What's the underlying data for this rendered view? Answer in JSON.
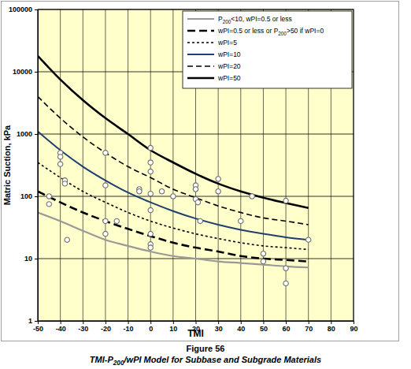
{
  "chart_data": {
    "type": "line",
    "title": "Figure 56",
    "subtitle": "TMI-P200/wPI Model for Subbase and Subgrade Materials",
    "x_label": "TMI",
    "y_label": "Matric Suction, kPa",
    "log": "y",
    "grid": true,
    "legend": "upper right",
    "xlim": [
      -50,
      90
    ],
    "xticks": [
      -50,
      -40,
      -30,
      -20,
      -10,
      0,
      10,
      20,
      30,
      40,
      50,
      60,
      70,
      80,
      90
    ],
    "ylim": [
      1,
      100000
    ],
    "yticks": [
      1,
      10,
      100,
      1000,
      10000,
      100000
    ],
    "x": [
      -50,
      -40,
      -30,
      -20,
      -10,
      0,
      10,
      20,
      30,
      40,
      50,
      60,
      70
    ],
    "series": [
      {
        "name": "P200<10, wPI=0.5 or less",
        "color": "#999999",
        "line_style": "solid",
        "values": [
          55,
          40,
          28,
          20,
          16,
          13,
          11,
          10,
          9,
          8.5,
          8,
          7.5,
          7.2
        ]
      },
      {
        "name": "wPI=0.5 or less or P200>50 if wPI=0",
        "color": "#000000",
        "line_style": "long-dash",
        "values": [
          120,
          80,
          55,
          40,
          30,
          23,
          18,
          15,
          13,
          11,
          10,
          9.5,
          9
        ]
      },
      {
        "name": "wPI=5",
        "color": "#000000",
        "line_style": "dotted",
        "values": [
          350,
          200,
          120,
          80,
          55,
          40,
          31,
          25,
          21,
          18,
          16,
          15,
          14
        ]
      },
      {
        "name": "wPI=10",
        "color": "#1f3f6e",
        "line_style": "solid",
        "values": [
          1100,
          550,
          300,
          180,
          115,
          80,
          58,
          44,
          35,
          29,
          25,
          22,
          20
        ]
      },
      {
        "name": "wPI=20",
        "color": "#000000",
        "line_style": "dash",
        "values": [
          4000,
          1800,
          900,
          500,
          300,
          200,
          130,
          95,
          70,
          55,
          45,
          40,
          35
        ]
      },
      {
        "name": "wPI=50",
        "color": "#000000",
        "line_style": "solid",
        "values": [
          18000,
          7500,
          3500,
          1800,
          1000,
          550,
          350,
          230,
          160,
          120,
          95,
          78,
          65
        ]
      },
      {
        "type": "scatter",
        "marker": "circle",
        "color": "#707070",
        "x": [
          -45,
          -45,
          -40,
          -40,
          -40,
          -38,
          -38,
          -37,
          -20,
          -20,
          -20,
          -20,
          -15,
          -5,
          -5,
          0,
          0,
          0,
          0,
          0,
          0,
          0,
          0,
          5,
          10,
          20,
          20,
          20,
          21,
          22,
          30,
          30,
          40,
          45,
          50,
          50,
          60,
          60,
          60,
          70
        ],
        "values": [
          100,
          75,
          500,
          430,
          330,
          180,
          160,
          20,
          500,
          150,
          40,
          25,
          40,
          130,
          120,
          600,
          350,
          250,
          110,
          60,
          25,
          17,
          15,
          120,
          100,
          150,
          130,
          90,
          80,
          40,
          190,
          120,
          40,
          100,
          12,
          9,
          85,
          7,
          4,
          20
        ]
      }
    ]
  }
}
